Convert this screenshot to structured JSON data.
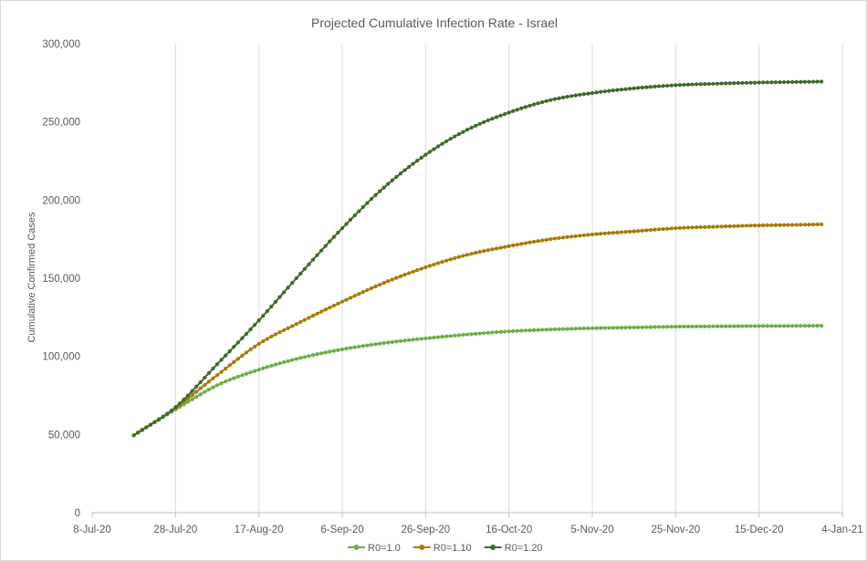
{
  "chart_data": {
    "type": "line",
    "title": "Projected Cumulative Infection Rate - Israel",
    "xlabel": "",
    "ylabel": "Cumulative Confirmed Cases",
    "x_axis": {
      "type": "date",
      "min": "2020-07-08",
      "max": "2021-01-04",
      "tick_labels": [
        "8-Jul-20",
        "28-Jul-20",
        "17-Aug-20",
        "6-Sep-20",
        "26-Sep-20",
        "16-Oct-20",
        "5-Nov-20",
        "25-Nov-20",
        "15-Dec-20",
        "4-Jan-21"
      ]
    },
    "y_axis": {
      "min": 0,
      "max": 300000,
      "tick_labels": [
        "0",
        "50,000",
        "100,000",
        "150,000",
        "200,000",
        "250,000",
        "300,000"
      ]
    },
    "grid": {
      "vertical": true,
      "horizontal": false
    },
    "legend_position": "bottom",
    "x_dates": [
      "2020-07-18",
      "2020-07-28",
      "2020-08-07",
      "2020-08-17",
      "2020-08-27",
      "2020-09-06",
      "2020-09-16",
      "2020-09-26",
      "2020-10-06",
      "2020-10-16",
      "2020-10-26",
      "2020-11-05",
      "2020-11-15",
      "2020-11-25",
      "2020-12-05",
      "2020-12-15",
      "2020-12-25",
      "2020-12-30"
    ],
    "series": [
      {
        "name": "R0=1.0",
        "color": "#70ad47",
        "values": [
          49500,
          66000,
          81500,
          91500,
          99000,
          104500,
          108500,
          111500,
          114000,
          116000,
          117200,
          118000,
          118500,
          119000,
          119200,
          119400,
          119500,
          119600
        ]
      },
      {
        "name": "R0=1.10",
        "color": "#a87a0a",
        "values": [
          49500,
          67000,
          88000,
          108000,
          122000,
          135000,
          147000,
          157000,
          165000,
          170500,
          175000,
          178000,
          180000,
          182000,
          183000,
          183800,
          184200,
          184500
        ]
      },
      {
        "name": "R0=1.20",
        "color": "#3f6a28",
        "values": [
          49500,
          67500,
          95000,
          123000,
          153000,
          182000,
          208000,
          229000,
          245000,
          256000,
          264000,
          268500,
          271500,
          273500,
          274500,
          275200,
          275600,
          275800
        ]
      }
    ]
  }
}
